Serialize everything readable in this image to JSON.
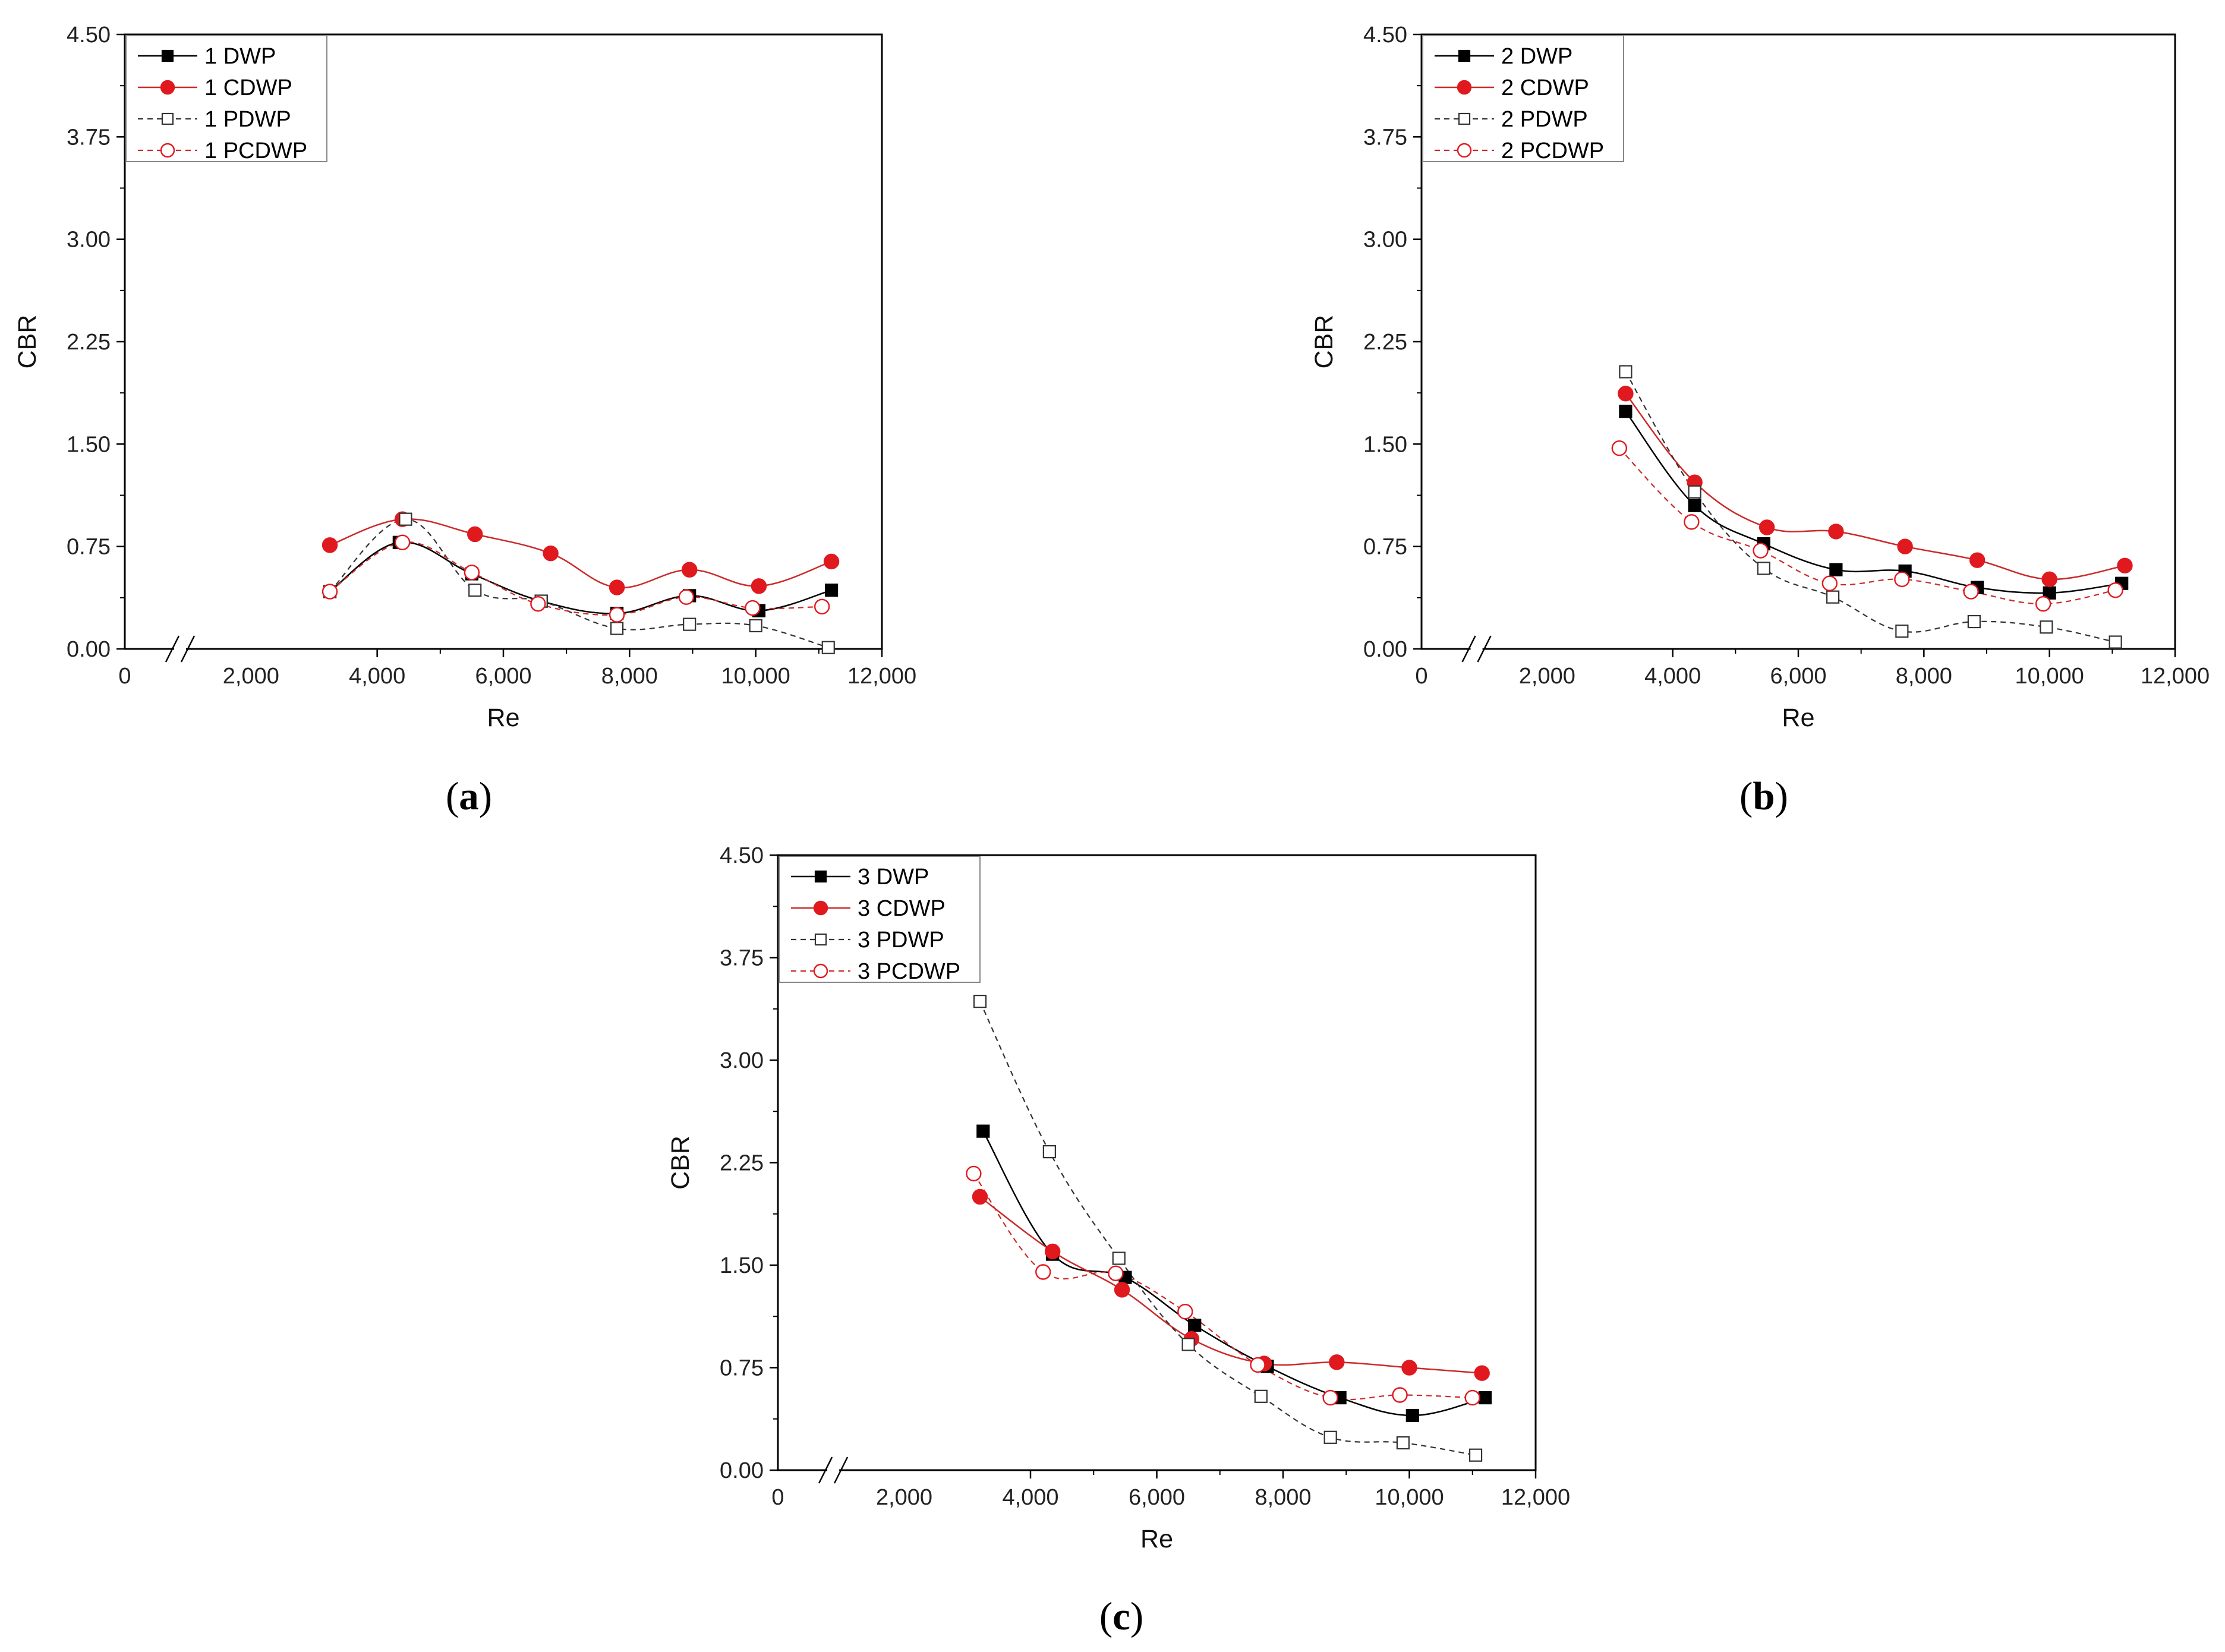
{
  "figure": {
    "captions": [
      "a",
      "b",
      "c"
    ]
  },
  "colors": {
    "black_series": "#000000",
    "red_series": "#e0191f",
    "red_line": "#cc2a2a",
    "gray_dash": "#333333",
    "axes": "#000000",
    "legend_border": "#888888"
  },
  "chart_data": [
    {
      "type": "line",
      "panel": "a",
      "xlabel": "Re",
      "ylabel": "CBR",
      "xlim": [
        0,
        12000
      ],
      "ylim": [
        0,
        4.5
      ],
      "x_ticks": [
        "0",
        "2,000",
        "4,000",
        "6,000",
        "8,000",
        "10,000",
        "12,000"
      ],
      "y_ticks": [
        "0.00",
        "0.75",
        "1.50",
        "2.25",
        "3.00",
        "3.75",
        "4.50"
      ],
      "axis_break": "between 0 and 2,000",
      "legend_position": "top-left",
      "series": [
        {
          "name": "1 DWP",
          "x": [
            3250,
            4350,
            5500,
            6600,
            7800,
            8950,
            10050,
            11200
          ],
          "y": [
            0.42,
            0.78,
            0.55,
            0.35,
            0.26,
            0.39,
            0.28,
            0.43
          ]
        },
        {
          "name": "1 CDWP",
          "x": [
            3250,
            4400,
            5550,
            6750,
            7800,
            8950,
            10050,
            11200
          ],
          "y": [
            0.76,
            0.95,
            0.84,
            0.7,
            0.45,
            0.58,
            0.46,
            0.64
          ]
        },
        {
          "name": "1 PDWP",
          "x": [
            3250,
            4450,
            5550,
            6600,
            7800,
            8950,
            10000,
            11150
          ],
          "y": [
            0.42,
            0.95,
            0.43,
            0.35,
            0.15,
            0.18,
            0.17,
            0.01
          ]
        },
        {
          "name": "1 PCDWP",
          "x": [
            3250,
            4400,
            5500,
            6550,
            7800,
            8900,
            9950,
            11050
          ],
          "y": [
            0.42,
            0.78,
            0.56,
            0.33,
            0.25,
            0.38,
            0.3,
            0.31
          ]
        }
      ]
    },
    {
      "type": "line",
      "panel": "b",
      "xlabel": "Re",
      "ylabel": "CBR",
      "xlim": [
        0,
        12000
      ],
      "ylim": [
        0,
        4.5
      ],
      "x_ticks": [
        "0",
        "2,000",
        "4,000",
        "6,000",
        "8,000",
        "10,000",
        "12,000"
      ],
      "y_ticks": [
        "0.00",
        "0.75",
        "1.50",
        "2.25",
        "3.00",
        "3.75",
        "4.50"
      ],
      "axis_break": "between 0 and 2,000",
      "legend_position": "top-left",
      "series": [
        {
          "name": "2 DWP",
          "x": [
            3250,
            4350,
            5450,
            6600,
            7700,
            8850,
            10000,
            11150
          ],
          "y": [
            1.74,
            1.05,
            0.77,
            0.58,
            0.57,
            0.45,
            0.41,
            0.48
          ]
        },
        {
          "name": "2 CDWP",
          "x": [
            3250,
            4350,
            5500,
            6600,
            7700,
            8850,
            10000,
            11200
          ],
          "y": [
            1.87,
            1.22,
            0.89,
            0.86,
            0.75,
            0.65,
            0.51,
            0.61
          ]
        },
        {
          "name": "2 PDWP",
          "x": [
            3250,
            4350,
            5450,
            6550,
            7650,
            8800,
            9950,
            11050
          ],
          "y": [
            2.03,
            1.15,
            0.59,
            0.38,
            0.13,
            0.2,
            0.16,
            0.05
          ]
        },
        {
          "name": "2 PCDWP",
          "x": [
            3150,
            4300,
            5400,
            6500,
            7650,
            8750,
            9900,
            11050
          ],
          "y": [
            1.47,
            0.93,
            0.72,
            0.48,
            0.51,
            0.42,
            0.33,
            0.43
          ]
        }
      ]
    },
    {
      "type": "line",
      "panel": "c",
      "xlabel": "Re",
      "ylabel": "CBR",
      "xlim": [
        0,
        12000
      ],
      "ylim": [
        0,
        4.5
      ],
      "x_ticks": [
        "0",
        "2,000",
        "4,000",
        "6,000",
        "8,000",
        "10,000",
        "12,000"
      ],
      "y_ticks": [
        "0.00",
        "0.75",
        "1.50",
        "2.25",
        "3.00",
        "3.75",
        "4.50"
      ],
      "axis_break": "between 0 and 2,000",
      "legend_position": "top-left",
      "series": [
        {
          "name": "3 DWP",
          "x": [
            3250,
            4350,
            5500,
            6600,
            7750,
            8900,
            10050,
            11200
          ],
          "y": [
            2.48,
            1.58,
            1.41,
            1.06,
            0.76,
            0.53,
            0.4,
            0.53
          ]
        },
        {
          "name": "3 CDWP",
          "x": [
            3200,
            4350,
            5450,
            6550,
            7700,
            8850,
            10000,
            11150
          ],
          "y": [
            2.0,
            1.6,
            1.32,
            0.96,
            0.78,
            0.79,
            0.75,
            0.71
          ]
        },
        {
          "name": "3 PDWP",
          "x": [
            3200,
            4300,
            5400,
            6500,
            7650,
            8750,
            9900,
            11050
          ],
          "y": [
            3.43,
            2.33,
            1.55,
            0.92,
            0.54,
            0.24,
            0.2,
            0.11
          ]
        },
        {
          "name": "3 PCDWP",
          "x": [
            3100,
            4200,
            5350,
            6450,
            7600,
            8750,
            9850,
            11000
          ],
          "y": [
            2.17,
            1.45,
            1.44,
            1.16,
            0.77,
            0.53,
            0.55,
            0.53
          ]
        }
      ]
    }
  ]
}
